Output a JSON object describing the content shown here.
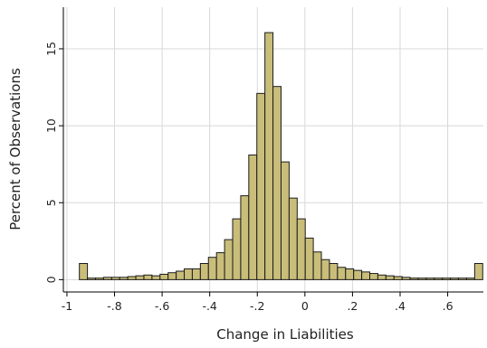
{
  "chart_data": {
    "type": "bar",
    "title": "",
    "xlabel": "Change in Liabilities",
    "ylabel": "Percent of Observations",
    "xlim": [
      -1.015,
      0.75
    ],
    "ylim": [
      -0.8,
      17.7
    ],
    "grid": true,
    "bar_color": "#c9bd7a",
    "bar_edge_color": "#1c1c1c",
    "bin_width": 0.0339,
    "x_ticks": [
      {
        "value": -1,
        "label": "-1"
      },
      {
        "value": -0.8,
        "label": "-.8"
      },
      {
        "value": -0.6,
        "label": "-.6"
      },
      {
        "value": -0.4,
        "label": "-.4"
      },
      {
        "value": -0.2,
        "label": "-.2"
      },
      {
        "value": 0,
        "label": "0"
      },
      {
        "value": 0.2,
        "label": ".2"
      },
      {
        "value": 0.4,
        "label": ".4"
      },
      {
        "value": 0.6,
        "label": ".6"
      }
    ],
    "y_ticks": [
      {
        "value": 0,
        "label": "0"
      },
      {
        "value": 5,
        "label": "5"
      },
      {
        "value": 10,
        "label": "10"
      },
      {
        "value": 15,
        "label": "15"
      }
    ],
    "x": [
      -0.9308,
      -0.8969,
      -0.863,
      -0.8291,
      -0.7952,
      -0.7613,
      -0.7274,
      -0.6935,
      -0.6596,
      -0.6257,
      -0.5918,
      -0.5579,
      -0.524,
      -0.4901,
      -0.4562,
      -0.4223,
      -0.3884,
      -0.3545,
      -0.3206,
      -0.2867,
      -0.2528,
      -0.2189,
      -0.185,
      -0.1511,
      -0.1172,
      -0.0833,
      -0.0494,
      -0.0155,
      0.0184,
      0.0523,
      0.0862,
      0.1201,
      0.154,
      0.1879,
      0.2218,
      0.2557,
      0.2896,
      0.3235,
      0.3574,
      0.3913,
      0.4252,
      0.4591,
      0.493,
      0.5269,
      0.5608,
      0.5947,
      0.6286,
      0.6625,
      0.6964,
      0.7303
    ],
    "values": [
      1.05,
      0.1,
      0.1,
      0.15,
      0.15,
      0.15,
      0.2,
      0.25,
      0.3,
      0.25,
      0.35,
      0.45,
      0.55,
      0.7,
      0.7,
      1.05,
      1.45,
      1.75,
      2.6,
      3.95,
      5.45,
      8.1,
      12.1,
      16.05,
      12.55,
      7.65,
      5.3,
      3.95,
      2.7,
      1.8,
      1.3,
      1.05,
      0.8,
      0.7,
      0.6,
      0.5,
      0.4,
      0.3,
      0.25,
      0.2,
      0.15,
      0.1,
      0.1,
      0.1,
      0.1,
      0.1,
      0.1,
      0.1,
      0.1,
      1.05
    ]
  }
}
